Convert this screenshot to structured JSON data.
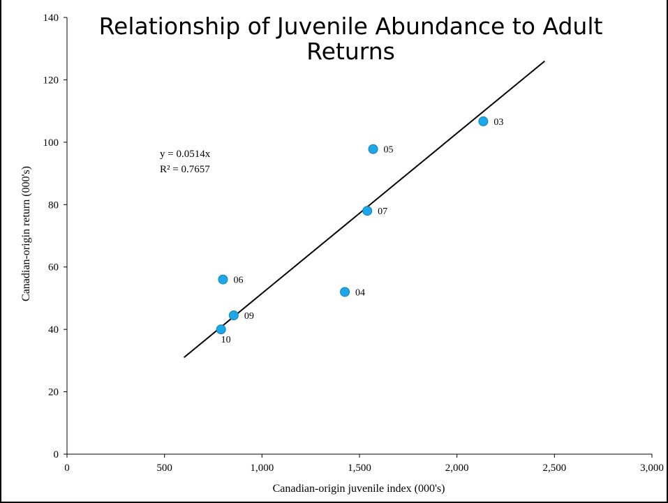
{
  "chart_data": {
    "type": "scatter",
    "title": "Relationship of Juvenile Abundance to Adult Returns",
    "xlabel": "Canadian-origin juvenile index (000's)",
    "ylabel": "Canadian-origin return (000's)",
    "xlim": [
      0,
      3000
    ],
    "ylim": [
      0,
      140
    ],
    "x_ticks": [
      0,
      500,
      1000,
      1500,
      2000,
      2500,
      3000
    ],
    "x_tick_labels": [
      "0",
      "500",
      "1,000",
      "1,500",
      "2,000",
      "2,500",
      "3,000"
    ],
    "y_ticks": [
      0,
      20,
      40,
      60,
      80,
      100,
      120,
      140
    ],
    "y_tick_labels": [
      "0",
      "20",
      "40",
      "60",
      "80",
      "100",
      "120",
      "140"
    ],
    "grid": false,
    "legend": "none",
    "marker_color": "#1CA7E8",
    "points": [
      {
        "label": "03",
        "x": 2135,
        "y": 106.7
      },
      {
        "label": "04",
        "x": 1425,
        "y": 52
      },
      {
        "label": "05",
        "x": 1570,
        "y": 97.8
      },
      {
        "label": "06",
        "x": 800,
        "y": 56
      },
      {
        "label": "07",
        "x": 1540,
        "y": 78
      },
      {
        "label": "09",
        "x": 855,
        "y": 44.5
      },
      {
        "label": "10",
        "x": 790,
        "y": 40
      }
    ],
    "trendline": {
      "x_range": [
        600,
        2450
      ],
      "y_range": [
        31,
        126
      ],
      "equation": "y = 0.0514x",
      "r_squared": "R² = 0.7657"
    }
  }
}
